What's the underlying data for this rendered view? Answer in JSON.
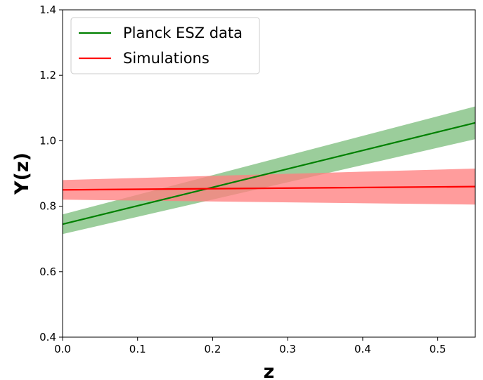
{
  "chart_data": {
    "type": "line",
    "xlabel": "z",
    "ylabel": "Y(z)",
    "xlim": [
      0,
      0.55
    ],
    "ylim": [
      0.4,
      1.4
    ],
    "xticks": [
      "0.0",
      "0.1",
      "0.2",
      "0.3",
      "0.4",
      "0.5"
    ],
    "yticks": [
      "0.4",
      "0.6",
      "0.8",
      "1.0",
      "1.2",
      "1.4"
    ],
    "grid": false,
    "legend_position": "top-left",
    "series": [
      {
        "name": "Planck ESZ data",
        "color": "#008000",
        "band_color": "#7fbf7f",
        "x": [
          0.0,
          0.55
        ],
        "y": [
          0.745,
          1.055
        ],
        "lower": [
          0.715,
          1.005
        ],
        "upper": [
          0.775,
          1.105
        ]
      },
      {
        "name": "Simulations",
        "color": "#ff0000",
        "band_color": "#ff8080",
        "x": [
          0.0,
          0.55
        ],
        "y": [
          0.85,
          0.86
        ],
        "lower": [
          0.82,
          0.805
        ],
        "upper": [
          0.88,
          0.915
        ]
      }
    ]
  }
}
